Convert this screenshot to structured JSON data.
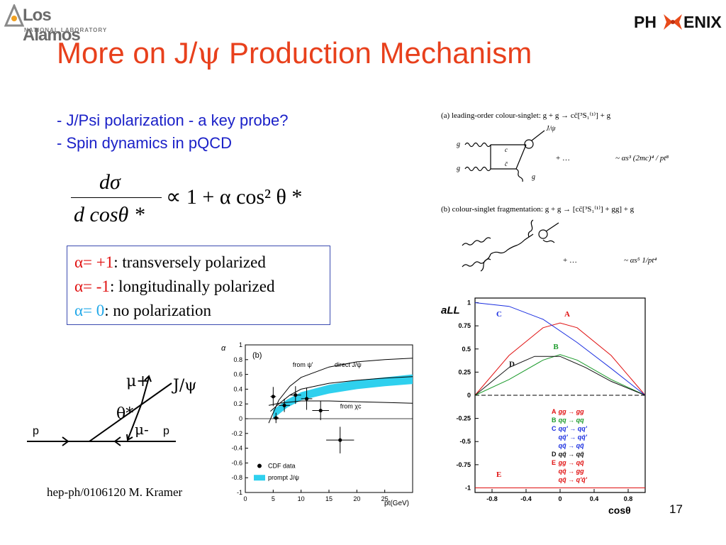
{
  "logos": {
    "left_name": "Los Alamos",
    "left_sub": "NATIONAL LABORATORY",
    "right_prefix": "PH",
    "right_suffix": "ENIX"
  },
  "title": {
    "prefix": "More on J/",
    "psi": "ψ",
    "suffix": " Production Mechanism"
  },
  "bullets": [
    "- J/Psi polarization - a key probe?",
    "- Spin dynamics in pQCD"
  ],
  "formula": {
    "numerator": "dσ",
    "denominator": "d cosθ *",
    "rhs": "∝ 1 + α cos² θ *"
  },
  "polarization": [
    {
      "alpha": "α= +1",
      "desc": ": transversely polarized",
      "color": "#e01010"
    },
    {
      "alpha": "α= -1",
      "desc": ": longitudinally polarized",
      "color": "#e01010"
    },
    {
      "alpha": "α= 0",
      "desc": ": no polarization",
      "color": "#22a8e8"
    }
  ],
  "feynman": {
    "a_caption": "(a) leading-order colour-singlet:   g + g → cc̄[³S₁⁽¹⁾] + g",
    "a_tail": "+ …",
    "a_scale": "~ αs³ (2mc)⁴ / pt⁸",
    "b_caption": "(b) colour-singlet fragmentation:   g + g → [cc̄[³S₁⁽¹⁾] + gg] + g",
    "b_tail": "+ …",
    "b_scale": "~ αs⁵ 1/pt⁴",
    "label_g": "g",
    "label_jpsi": "J/ψ",
    "label_c": "c",
    "label_cbar": "c̄"
  },
  "kinematics": {
    "mu_plus": "μ+",
    "mu_minus": "μ-",
    "jpsi": "J/ψ",
    "theta": "θ*",
    "p_left": "p",
    "p_right": "p"
  },
  "cdf_plot": {
    "ylabel": "α",
    "panel": "(b)",
    "xlabel": "pt(GeV)",
    "labels": [
      "from ψ'",
      "direct J/ψ",
      "from χc"
    ],
    "legend": [
      "CDF data",
      "prompt J/ψ"
    ],
    "band_color": "#2fd0ee"
  },
  "all_plot": {
    "ylabel": "aLL",
    "xlabel": "cosθ",
    "curve_labels": [
      "A",
      "B",
      "C",
      "D",
      "E"
    ],
    "legend": [
      {
        "tag": "A",
        "process": "gg → gg",
        "color": "#e01010"
      },
      {
        "tag": "B",
        "process": "qq → qq",
        "color": "#1a9a2a"
      },
      {
        "tag": "C",
        "process": "qq' → qq'",
        "color": "#1a2ee0"
      },
      {
        "tag": "",
        "process": "qq̄' → qq̄'",
        "color": "#1a2ee0"
      },
      {
        "tag": "",
        "process": "qq̄ → qq̄",
        "color": "#1a2ee0"
      },
      {
        "tag": "D",
        "process": "qq̄ → qq̄",
        "color": "#111111"
      },
      {
        "tag": "E",
        "process": "gg → qq̄",
        "color": "#e01010"
      },
      {
        "tag": "",
        "process": "qq̄ → gg",
        "color": "#e01010"
      },
      {
        "tag": "",
        "process": "qq̄ → q'q̄'",
        "color": "#e01010"
      }
    ]
  },
  "chart_data": [
    {
      "type": "line",
      "title": "(b)",
      "xlabel": "pt(GeV)",
      "ylabel": "α",
      "xlim": [
        0,
        30
      ],
      "ylim": [
        -1,
        1
      ],
      "xticks": [
        0,
        5,
        10,
        15,
        20,
        25
      ],
      "yticks": [
        -1,
        -0.8,
        -0.6,
        -0.4,
        -0.2,
        0,
        0.2,
        0.4,
        0.6,
        0.8,
        1
      ],
      "series": [
        {
          "name": "CDF data",
          "x": [
            5,
            5.5,
            7,
            9,
            11,
            13.5,
            17
          ],
          "y": [
            0.3,
            0.01,
            0.18,
            0.32,
            0.27,
            0.11,
            -0.29
          ],
          "xerr": [
            0.5,
            0.5,
            1,
            1,
            1,
            1.5,
            2.5
          ],
          "yerr": [
            0.13,
            0.07,
            0.09,
            0.12,
            0.15,
            0.13,
            0.18
          ]
        },
        {
          "name": "prompt J/ψ",
          "x": [
            5,
            7.5,
            10,
            15,
            20,
            25,
            30
          ],
          "y_low": [
            0.0,
            0.15,
            0.25,
            0.34,
            0.4,
            0.44,
            0.47
          ],
          "y_high": [
            0.12,
            0.26,
            0.36,
            0.46,
            0.52,
            0.56,
            0.6
          ]
        },
        {
          "name": "from ψ'",
          "x": [
            4.2,
            6,
            8,
            10,
            15,
            20,
            25,
            30
          ],
          "y": [
            -0.06,
            0.25,
            0.44,
            0.56,
            0.7,
            0.77,
            0.8,
            0.82
          ]
        },
        {
          "name": "direct J/ψ",
          "x": [
            4.5,
            6,
            8,
            10,
            15,
            20,
            25,
            30
          ],
          "y": [
            0.1,
            0.2,
            0.32,
            0.4,
            0.48,
            0.52,
            0.55,
            0.57
          ]
        },
        {
          "name": "from χc",
          "x": [
            4.2,
            6,
            10,
            15,
            20,
            25,
            30
          ],
          "y": [
            0.18,
            0.21,
            0.24,
            0.24,
            0.23,
            0.22,
            0.21
          ]
        }
      ],
      "legend_position": "bottom-left"
    },
    {
      "type": "line",
      "title": "",
      "xlabel": "cosθ",
      "ylabel": "aLL",
      "xlim": [
        -1,
        1
      ],
      "ylim": [
        -1.05,
        1.05
      ],
      "xticks": [
        -0.8,
        -0.4,
        0,
        0.4,
        0.8
      ],
      "yticks": [
        -1,
        -0.75,
        -0.5,
        -0.25,
        0,
        0.25,
        0.5,
        0.75,
        1
      ],
      "series": [
        {
          "name": "A",
          "x": [
            -1,
            -0.6,
            -0.2,
            0,
            0.2,
            0.6,
            1
          ],
          "y": [
            0,
            0.43,
            0.73,
            0.78,
            0.73,
            0.43,
            0
          ],
          "color": "#e01010"
        },
        {
          "name": "B",
          "x": [
            -1,
            -0.6,
            -0.2,
            0,
            0.2,
            0.6,
            1
          ],
          "y": [
            0,
            0.17,
            0.38,
            0.44,
            0.38,
            0.17,
            0
          ],
          "color": "#1a9a2a"
        },
        {
          "name": "C",
          "x": [
            -1,
            -0.6,
            -0.2,
            0.2,
            0.6,
            1
          ],
          "y": [
            1,
            0.96,
            0.82,
            0.57,
            0.29,
            0
          ],
          "color": "#1a2ee0"
        },
        {
          "name": "D",
          "x": [
            -1,
            -0.6,
            -0.3,
            0,
            0.3,
            0.6,
            1
          ],
          "y": [
            0,
            0.3,
            0.42,
            0.42,
            0.3,
            0.15,
            0
          ],
          "color": "#111111"
        },
        {
          "name": "E",
          "x": [
            -1,
            1
          ],
          "y": [
            -1,
            -1
          ],
          "color": "#e01010"
        }
      ],
      "legend_position": "bottom-center"
    }
  ]
}
